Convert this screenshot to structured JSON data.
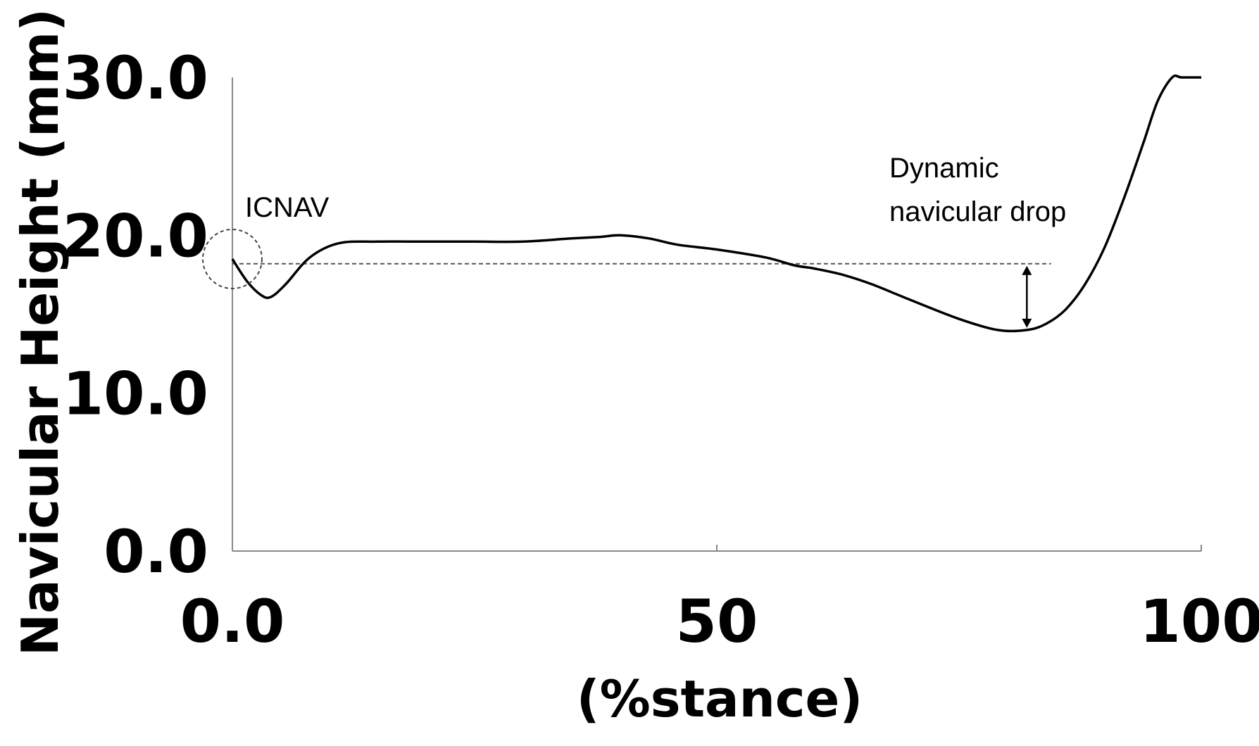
{
  "chart_data": {
    "type": "line",
    "title": "",
    "xlabel": "(%stance)",
    "ylabel": "Navicular Height (mm)",
    "xlim": [
      0,
      100
    ],
    "ylim": [
      0,
      30
    ],
    "x_ticks": [
      "0.0",
      "50",
      "100"
    ],
    "y_ticks": [
      "0.0",
      "10.0",
      "20.0",
      "30.0"
    ],
    "grid": false,
    "legend": "none",
    "series": [
      {
        "x": [
          0,
          1.5,
          3,
          4,
          5.5,
          8,
          11,
          15,
          20,
          25,
          30,
          35,
          38,
          40,
          43,
          46,
          50,
          55,
          58,
          60,
          63,
          66,
          70,
          75,
          79,
          82,
          84,
          86,
          88,
          90,
          92,
          94,
          95.5,
          97,
          98,
          100
        ],
        "y": [
          18.5,
          17.1,
          16.2,
          16.1,
          16.9,
          18.6,
          19.5,
          19.6,
          19.6,
          19.6,
          19.6,
          19.8,
          19.9,
          20.0,
          19.8,
          19.4,
          19.1,
          18.6,
          18.1,
          17.9,
          17.5,
          16.9,
          15.9,
          14.7,
          14.0,
          14.0,
          14.4,
          15.3,
          16.9,
          19.2,
          22.3,
          25.8,
          28.5,
          30.0,
          30.0,
          30.0
        ]
      }
    ],
    "reference_line": {
      "y": 18.2,
      "x_range": [
        0,
        84.5
      ],
      "style": "dashed"
    },
    "annotations": [
      {
        "text": "ICNAV",
        "target_x": 0,
        "target_y": 18.5
      },
      {
        "text_lines": [
          "Dynamic",
          "navicular drop"
        ],
        "arrow_x": 82,
        "from_y": 18.2,
        "to_y": 14.0
      }
    ]
  }
}
